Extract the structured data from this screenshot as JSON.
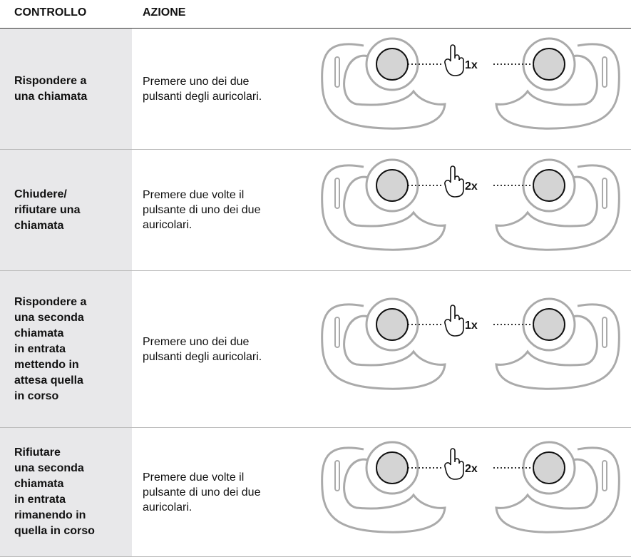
{
  "header": {
    "columns": [
      "CONTROLLO",
      "AZIONE"
    ]
  },
  "rows": [
    {
      "control": [
        "Rispondere a",
        "una chiamata"
      ],
      "action": [
        "Premere uno dei due",
        "pulsanti degli auricolari."
      ],
      "press": "1x"
    },
    {
      "control": [
        "Chiudere/",
        "rifiutare una",
        "chiamata"
      ],
      "action": [
        "Premere due volte il",
        "pulsante di uno dei due",
        "auricolari."
      ],
      "press": "2x"
    },
    {
      "control": [
        "Rispondere a",
        "una seconda",
        "chiamata",
        "in entrata",
        "mettendo in",
        "attesa quella",
        "in corso"
      ],
      "action": [
        "Premere uno dei due",
        "pulsanti degli auricolari."
      ],
      "press": "1x"
    },
    {
      "control": [
        "Rifiutare",
        "una seconda",
        "chiamata",
        "in entrata",
        "rimanendo in",
        "quella in corso"
      ],
      "action": [
        "Premere due volte il",
        "pulsante di uno dei due",
        "auricolari."
      ],
      "press": "2x"
    }
  ]
}
